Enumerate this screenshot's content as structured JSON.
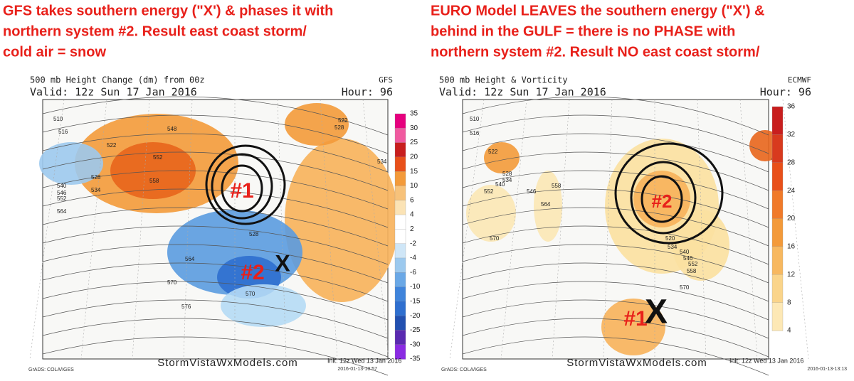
{
  "left_panel": {
    "caption": [
      "GFS takes  southern energy (\"X') & phases it  with",
      "northern system #2. Result   east coast  storm/",
      "cold air = snow"
    ],
    "header": {
      "title": "500 mb Height Change (dm) from 00z",
      "model": "GFS",
      "valid": "Valid: 12z Sun 17 Jan 2016",
      "hour": "Hour: 96"
    },
    "colorbar_labels": [
      35,
      30,
      25,
      20,
      15,
      10,
      6,
      4,
      2,
      -2,
      -4,
      -6,
      -10,
      -15,
      -20,
      -25,
      -30,
      -35
    ],
    "contour_labels": [
      510,
      516,
      522,
      528,
      534,
      540,
      546,
      552,
      564,
      548,
      552,
      558,
      522,
      528,
      534,
      528,
      564,
      570,
      576,
      570
    ],
    "annotations": [
      "#1",
      "#2",
      "X"
    ],
    "footer": {
      "grads": "GrADS: COLA/IGES",
      "site": "StormVistaWxModels.com",
      "init": "Init: 12z Wed 13 Jan 2016",
      "timestamp": "2016-01-13-10:57"
    }
  },
  "right_panel": {
    "caption": [
      "EURO Model  LEAVES  the  southern energy (\"X') &",
      "behind in the GULF =  there is no PHASE with",
      "northern system #2. Result   NO east coast  storm/"
    ],
    "header": {
      "title": "500 mb Height & Vorticity",
      "model": "ECMWF",
      "valid": "Valid: 12z Sun 17 Jan 2016",
      "hour": "Hour: 96"
    },
    "colorbar_labels": [
      36,
      32,
      28,
      24,
      20,
      16,
      12,
      8,
      4
    ],
    "contour_labels": [
      510,
      516,
      522,
      528,
      534,
      540,
      552,
      546,
      558,
      564,
      570,
      528,
      520,
      534,
      540,
      546,
      552,
      558,
      570
    ],
    "annotations": [
      "#2",
      "#1",
      "X"
    ],
    "footer": {
      "grads": "GrADS: COLA/IGES",
      "site": "StormVistaWxModels.com",
      "init": "Init: 12z Wed 13 Jan 2016",
      "timestamp": "2016-01-13-13:13"
    }
  }
}
